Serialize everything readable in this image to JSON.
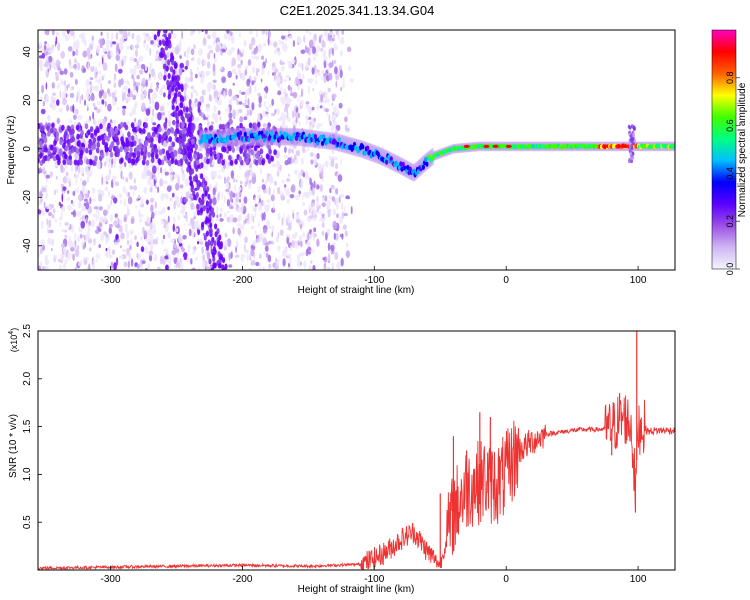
{
  "figure": {
    "title": "C2E1.2025.341.13.34.G04"
  },
  "chart_data": [
    {
      "type": "heatmap",
      "name": "spectrogram",
      "title": "C2E1.2025.341.13.34.G04",
      "xlabel": "Height of straight line (km)",
      "ylabel": "Frequency (Hz)",
      "xlim": [
        -355,
        128
      ],
      "ylim": [
        -50,
        49
      ],
      "x_ticks": [
        -300,
        -200,
        -100,
        0,
        100
      ],
      "x_tick_labels": [
        "-300",
        "-200",
        "-100",
        "0",
        "100"
      ],
      "y_ticks": [
        -40,
        -20,
        0,
        20,
        40
      ],
      "y_tick_labels": [
        "-40",
        "-20",
        "0",
        "20",
        "40"
      ],
      "colorbar": {
        "label": "Normalized spectral amplitude",
        "range": [
          0,
          1
        ],
        "ticks": [
          0.0,
          0.2,
          0.4,
          0.6,
          0.8
        ],
        "tick_labels": [
          "0.0",
          "0.2",
          "0.4",
          "0.6",
          "0.8"
        ],
        "colors": [
          "#f4f4fe",
          "#cfb6f3",
          "#9a4fe6",
          "#5a00ff",
          "#0000ff",
          "#00c0ff",
          "#00ff80",
          "#40ff00",
          "#ffff00",
          "#ff6000",
          "#ff0000",
          "#ff00c0"
        ]
      },
      "ridge_frequency": {
        "x": [
          -230,
          -200,
          -160,
          -130,
          -110,
          -95,
          -80,
          -70,
          -62,
          -55,
          -40,
          -20,
          0,
          20,
          50,
          80,
          95,
          110,
          128
        ],
        "y": [
          4,
          5,
          5,
          3,
          0,
          -3,
          -7,
          -10,
          -6,
          -3,
          0,
          1,
          1,
          1,
          1,
          1,
          1,
          1,
          1
        ]
      },
      "tone_band_amplitude": [
        {
          "x_from": -60,
          "x_to": 0,
          "amplitude": 0.55
        },
        {
          "x_from": 0,
          "x_to": 70,
          "amplitude": 0.55
        },
        {
          "x_from": 70,
          "x_to": 100,
          "amplitude": 0.85
        },
        {
          "x_from": 100,
          "x_to": 128,
          "amplitude": 0.6
        }
      ]
    },
    {
      "type": "line",
      "name": "snr",
      "xlabel": "Height of straight line (km)",
      "ylabel": "SNR (10 * v/v)",
      "y_multiplier_label": "(x10",
      "y_multiplier_exp": "4",
      "xlim": [
        -355,
        128
      ],
      "ylim": [
        0,
        2.5
      ],
      "x_ticks": [
        -300,
        -200,
        -100,
        0,
        100
      ],
      "x_tick_labels": [
        "-300",
        "-200",
        "-100",
        "0",
        "100"
      ],
      "y_ticks": [
        0.5,
        1.0,
        1.5,
        2.0,
        2.5
      ],
      "y_tick_labels": [
        "0.5",
        "1.0",
        "1.5",
        "2.0",
        "2.5"
      ],
      "color": "#ee3333",
      "series": [
        {
          "name": "SNR",
          "x": [
            -355,
            -300,
            -250,
            -200,
            -150,
            -110,
            -100,
            -90,
            -80,
            -70,
            -60,
            -50,
            -45,
            -40,
            -35,
            -30,
            -25,
            -20,
            -15,
            -10,
            -5,
            0,
            5,
            10,
            20,
            30,
            40,
            50,
            60,
            70,
            80,
            85,
            90,
            95,
            98,
            100,
            103,
            108,
            115,
            128
          ],
          "y": [
            0.02,
            0.03,
            0.04,
            0.05,
            0.04,
            0.06,
            0.12,
            0.2,
            0.32,
            0.4,
            0.2,
            0.05,
            0.32,
            0.6,
            0.75,
            0.85,
            0.9,
            0.92,
            0.95,
            0.9,
            0.92,
            1.0,
            1.15,
            1.25,
            1.35,
            1.42,
            1.44,
            1.46,
            1.47,
            1.47,
            1.48,
            1.55,
            1.6,
            1.5,
            0.8,
            1.5,
            1.5,
            1.45,
            1.46,
            1.46
          ]
        }
      ],
      "spikes": [
        {
          "x": 99,
          "y": 2.5
        },
        {
          "x": 98,
          "y": 0.6
        },
        {
          "x": -20,
          "y": 1.65
        },
        {
          "x": -12,
          "y": 1.6
        },
        {
          "x": -40,
          "y": 1.4
        },
        {
          "x": -30,
          "y": 1.25
        },
        {
          "x": -50,
          "y": 0.8
        },
        {
          "x": 86,
          "y": 1.85
        },
        {
          "x": 80,
          "y": 1.2
        }
      ]
    }
  ]
}
